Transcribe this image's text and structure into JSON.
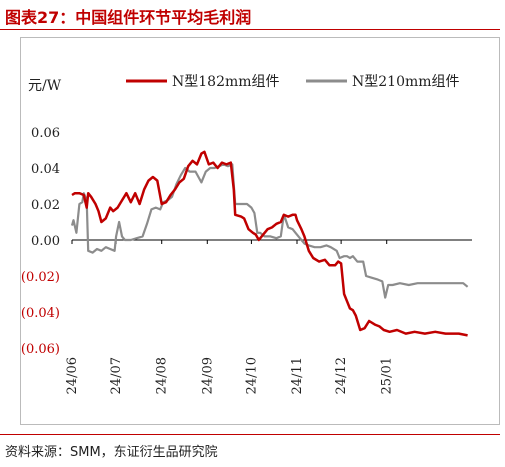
{
  "title": "图表27：中国组件环节平均毛利润",
  "source": "资料来源：SMM，东证衍生品研究院",
  "chart_data": {
    "type": "line",
    "ylabel": "元/W",
    "ylim": [
      -0.06,
      0.06
    ],
    "y_ticks": [
      {
        "value": 0.06,
        "label": "0.06",
        "negative": false
      },
      {
        "value": 0.04,
        "label": "0.04",
        "negative": false
      },
      {
        "value": 0.02,
        "label": "0.02",
        "negative": false
      },
      {
        "value": 0.0,
        "label": "0.00",
        "negative": false
      },
      {
        "value": -0.02,
        "label": "(0.02)",
        "negative": true
      },
      {
        "value": -0.04,
        "label": "(0.04)",
        "negative": true
      },
      {
        "value": -0.06,
        "label": "(0.06)",
        "negative": true
      }
    ],
    "x_range": [
      "2024-06-01",
      "2025-02-28"
    ],
    "x_ticks": [
      {
        "date": "2024-06-01",
        "label": "24/06"
      },
      {
        "date": "2024-07-01",
        "label": "24/07"
      },
      {
        "date": "2024-08-01",
        "label": "24/08"
      },
      {
        "date": "2024-09-01",
        "label": "24/09"
      },
      {
        "date": "2024-10-01",
        "label": "24/10"
      },
      {
        "date": "2024-11-01",
        "label": "24/11"
      },
      {
        "date": "2024-12-01",
        "label": "24/12"
      },
      {
        "date": "2025-01-01",
        "label": "25/01"
      }
    ],
    "grid": false,
    "legend_position": "top",
    "series": [
      {
        "name": "N型182mm组件",
        "color": "#c00000",
        "points": [
          [
            "2024-06-01",
            0.025
          ],
          [
            "2024-06-03",
            0.026
          ],
          [
            "2024-06-06",
            0.026
          ],
          [
            "2024-06-09",
            0.025
          ],
          [
            "2024-06-11",
            0.018
          ],
          [
            "2024-06-12",
            0.026
          ],
          [
            "2024-06-14",
            0.024
          ],
          [
            "2024-06-17",
            0.02
          ],
          [
            "2024-06-19",
            0.016
          ],
          [
            "2024-06-21",
            0.01
          ],
          [
            "2024-06-24",
            0.012
          ],
          [
            "2024-06-27",
            0.018
          ],
          [
            "2024-06-29",
            0.016
          ],
          [
            "2024-07-02",
            0.018
          ],
          [
            "2024-07-05",
            0.022
          ],
          [
            "2024-07-08",
            0.026
          ],
          [
            "2024-07-11",
            0.021
          ],
          [
            "2024-07-14",
            0.026
          ],
          [
            "2024-07-17",
            0.02
          ],
          [
            "2024-07-20",
            0.028
          ],
          [
            "2024-07-23",
            0.033
          ],
          [
            "2024-07-26",
            0.035
          ],
          [
            "2024-07-29",
            0.033
          ],
          [
            "2024-08-01",
            0.02
          ],
          [
            "2024-08-04",
            0.021
          ],
          [
            "2024-08-07",
            0.025
          ],
          [
            "2024-08-10",
            0.028
          ],
          [
            "2024-08-13",
            0.032
          ],
          [
            "2024-08-16",
            0.034
          ],
          [
            "2024-08-19",
            0.041
          ],
          [
            "2024-08-22",
            0.044
          ],
          [
            "2024-08-25",
            0.042
          ],
          [
            "2024-08-28",
            0.048
          ],
          [
            "2024-08-30",
            0.049
          ],
          [
            "2024-09-02",
            0.042
          ],
          [
            "2024-09-05",
            0.043
          ],
          [
            "2024-09-08",
            0.04
          ],
          [
            "2024-09-11",
            0.043
          ],
          [
            "2024-09-14",
            0.042
          ],
          [
            "2024-09-17",
            0.043
          ],
          [
            "2024-09-19",
            0.028
          ],
          [
            "2024-09-20",
            0.014
          ],
          [
            "2024-09-24",
            0.013
          ],
          [
            "2024-09-26",
            0.012
          ],
          [
            "2024-09-29",
            0.006
          ],
          [
            "2024-10-02",
            0.004
          ],
          [
            "2024-10-04",
            0.003
          ],
          [
            "2024-10-06",
            0.0
          ],
          [
            "2024-10-09",
            0.003
          ],
          [
            "2024-10-12",
            0.006
          ],
          [
            "2024-10-15",
            0.007
          ],
          [
            "2024-10-18",
            0.009
          ],
          [
            "2024-10-21",
            0.01
          ],
          [
            "2024-10-23",
            0.014
          ],
          [
            "2024-10-26",
            0.013
          ],
          [
            "2024-10-29",
            0.014
          ],
          [
            "2024-10-31",
            0.014
          ],
          [
            "2024-11-01",
            0.011
          ],
          [
            "2024-11-04",
            0.006
          ],
          [
            "2024-11-06",
            0.002
          ],
          [
            "2024-11-09",
            -0.006
          ],
          [
            "2024-11-12",
            -0.01
          ],
          [
            "2024-11-16",
            -0.012
          ],
          [
            "2024-11-20",
            -0.011
          ],
          [
            "2024-11-23",
            -0.014
          ],
          [
            "2024-11-27",
            -0.014
          ],
          [
            "2024-11-29",
            -0.012
          ],
          [
            "2024-12-01",
            -0.013
          ],
          [
            "2024-12-03",
            -0.03
          ],
          [
            "2024-12-05",
            -0.034
          ],
          [
            "2024-12-07",
            -0.038
          ],
          [
            "2024-12-09",
            -0.039
          ],
          [
            "2024-12-11",
            -0.042
          ],
          [
            "2024-12-14",
            -0.05
          ],
          [
            "2024-12-17",
            -0.049
          ],
          [
            "2024-12-20",
            -0.045
          ],
          [
            "2024-12-24",
            -0.047
          ],
          [
            "2024-12-27",
            -0.048
          ],
          [
            "2024-12-30",
            -0.05
          ],
          [
            "2025-01-03",
            -0.051
          ],
          [
            "2025-01-08",
            -0.05
          ],
          [
            "2025-01-14",
            -0.052
          ],
          [
            "2025-01-20",
            -0.051
          ],
          [
            "2025-01-27",
            -0.052
          ],
          [
            "2025-02-03",
            -0.051
          ],
          [
            "2025-02-10",
            -0.052
          ],
          [
            "2025-02-19",
            -0.052
          ],
          [
            "2025-02-25",
            -0.053
          ]
        ]
      },
      {
        "name": "N型210mm组件",
        "color": "#8c8c8c",
        "points": [
          [
            "2024-06-01",
            0.008
          ],
          [
            "2024-06-02",
            0.011
          ],
          [
            "2024-06-04",
            0.004
          ],
          [
            "2024-06-06",
            0.02
          ],
          [
            "2024-06-08",
            0.021
          ],
          [
            "2024-06-09",
            0.026
          ],
          [
            "2024-06-11",
            0.022
          ],
          [
            "2024-06-12",
            -0.006
          ],
          [
            "2024-06-15",
            -0.007
          ],
          [
            "2024-06-18",
            -0.005
          ],
          [
            "2024-06-21",
            -0.006
          ],
          [
            "2024-06-24",
            -0.004
          ],
          [
            "2024-06-27",
            -0.005
          ],
          [
            "2024-06-30",
            -0.006
          ],
          [
            "2024-07-01",
            0.002
          ],
          [
            "2024-07-03",
            0.01
          ],
          [
            "2024-07-05",
            0.002
          ],
          [
            "2024-07-07",
            0.0
          ],
          [
            "2024-07-11",
            0.0
          ],
          [
            "2024-07-15",
            0.001
          ],
          [
            "2024-07-19",
            0.002
          ],
          [
            "2024-07-22",
            0.009
          ],
          [
            "2024-07-25",
            0.017
          ],
          [
            "2024-07-28",
            0.018
          ],
          [
            "2024-07-31",
            0.017
          ],
          [
            "2024-08-02",
            0.021
          ],
          [
            "2024-08-05",
            0.022
          ],
          [
            "2024-08-08",
            0.024
          ],
          [
            "2024-08-11",
            0.031
          ],
          [
            "2024-08-14",
            0.036
          ],
          [
            "2024-08-17",
            0.04
          ],
          [
            "2024-08-20",
            0.038
          ],
          [
            "2024-08-24",
            0.038
          ],
          [
            "2024-08-28",
            0.032
          ],
          [
            "2024-08-31",
            0.038
          ],
          [
            "2024-09-03",
            0.04
          ],
          [
            "2024-09-06",
            0.04
          ],
          [
            "2024-09-09",
            0.041
          ],
          [
            "2024-09-12",
            0.042
          ],
          [
            "2024-09-15",
            0.041
          ],
          [
            "2024-09-18",
            0.042
          ],
          [
            "2024-09-20",
            0.02
          ],
          [
            "2024-09-24",
            0.02
          ],
          [
            "2024-09-28",
            0.02
          ],
          [
            "2024-10-01",
            0.018
          ],
          [
            "2024-10-03",
            0.015
          ],
          [
            "2024-10-05",
            0.004
          ],
          [
            "2024-10-07",
            0.004
          ],
          [
            "2024-10-10",
            0.002
          ],
          [
            "2024-10-14",
            0.002
          ],
          [
            "2024-10-18",
            0.001
          ],
          [
            "2024-10-21",
            0.002
          ],
          [
            "2024-10-23",
            0.014
          ],
          [
            "2024-10-24",
            0.012
          ],
          [
            "2024-10-26",
            0.007
          ],
          [
            "2024-10-29",
            0.006
          ],
          [
            "2024-10-31",
            0.004
          ],
          [
            "2024-11-03",
            0.001
          ],
          [
            "2024-11-06",
            -0.002
          ],
          [
            "2024-11-09",
            -0.003
          ],
          [
            "2024-11-13",
            -0.004
          ],
          [
            "2024-11-17",
            -0.004
          ],
          [
            "2024-11-21",
            -0.003
          ],
          [
            "2024-11-24",
            -0.004
          ],
          [
            "2024-11-28",
            -0.006
          ],
          [
            "2024-11-30",
            -0.01
          ],
          [
            "2024-12-03",
            -0.009
          ],
          [
            "2024-12-05",
            -0.009
          ],
          [
            "2024-12-07",
            -0.01
          ],
          [
            "2024-12-09",
            -0.009
          ],
          [
            "2024-12-12",
            -0.012
          ],
          [
            "2024-12-16",
            -0.012
          ],
          [
            "2024-12-18",
            -0.02
          ],
          [
            "2024-12-22",
            -0.021
          ],
          [
            "2024-12-26",
            -0.022
          ],
          [
            "2024-12-29",
            -0.023
          ],
          [
            "2024-12-31",
            -0.032
          ],
          [
            "2025-01-02",
            -0.025
          ],
          [
            "2025-01-05",
            -0.025
          ],
          [
            "2025-01-10",
            -0.024
          ],
          [
            "2025-01-16",
            -0.025
          ],
          [
            "2025-01-22",
            -0.024
          ],
          [
            "2025-01-29",
            -0.024
          ],
          [
            "2025-02-06",
            -0.024
          ],
          [
            "2025-02-14",
            -0.024
          ],
          [
            "2025-02-22",
            -0.024
          ],
          [
            "2025-02-25",
            -0.026
          ]
        ]
      }
    ]
  }
}
